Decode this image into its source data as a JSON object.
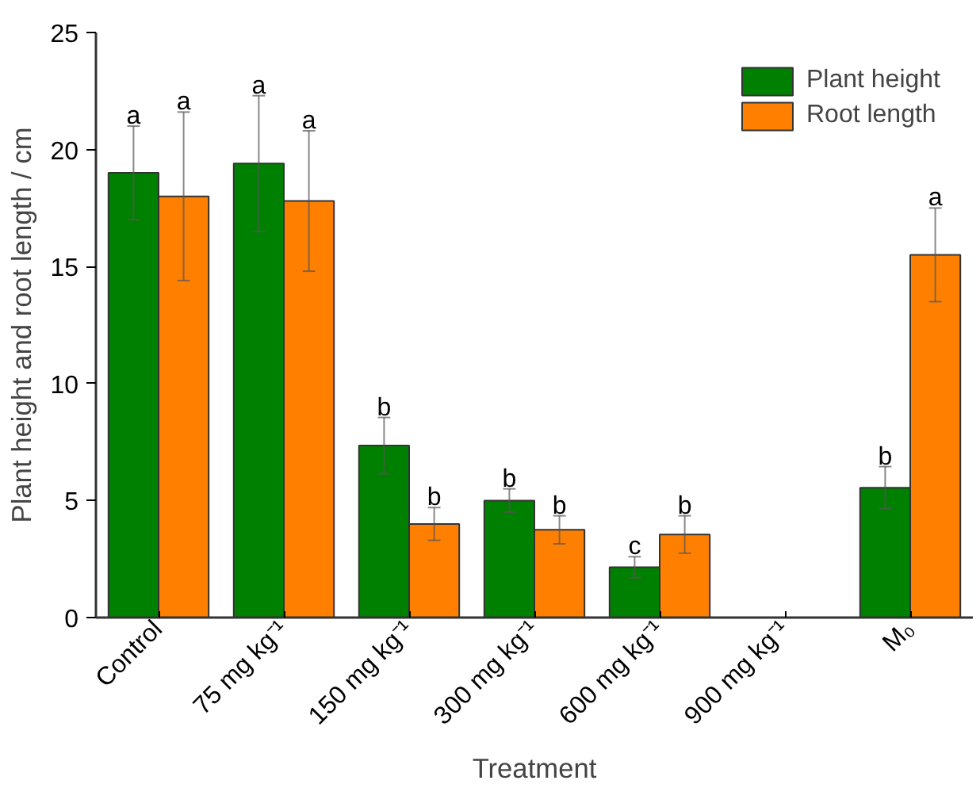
{
  "chart_data": {
    "type": "bar",
    "xlabel": "Treatment",
    "ylabel": "Plant height and root length / cm",
    "categories": [
      "Control",
      "75 mg kg⁻¹",
      "150 mg kg⁻¹",
      "300 mg kg⁻¹",
      "600 mg kg⁻¹",
      "900 mg kg⁻¹",
      "M₀"
    ],
    "series": [
      {
        "name": "Plant height",
        "color": "#008000",
        "values": [
          19.0,
          19.4,
          7.35,
          5.0,
          2.15,
          null,
          5.55
        ],
        "errors": [
          2.0,
          2.9,
          1.2,
          0.5,
          0.45,
          null,
          0.9
        ],
        "value_labels": [
          "a",
          "a",
          "b",
          "b",
          "c",
          null,
          "b"
        ]
      },
      {
        "name": "Root length",
        "color": "#ff8000",
        "values": [
          18.0,
          17.8,
          4.0,
          3.75,
          3.55,
          null,
          15.5
        ],
        "errors": [
          3.6,
          3.0,
          0.7,
          0.6,
          0.8,
          null,
          2.0
        ],
        "value_labels": [
          "a",
          "a",
          "b",
          "b",
          "b",
          null,
          "a"
        ]
      }
    ],
    "ylim": [
      0,
      25
    ],
    "yticks": [
      0,
      5,
      10,
      15,
      20,
      25
    ],
    "grid": false,
    "legend": "top right"
  }
}
